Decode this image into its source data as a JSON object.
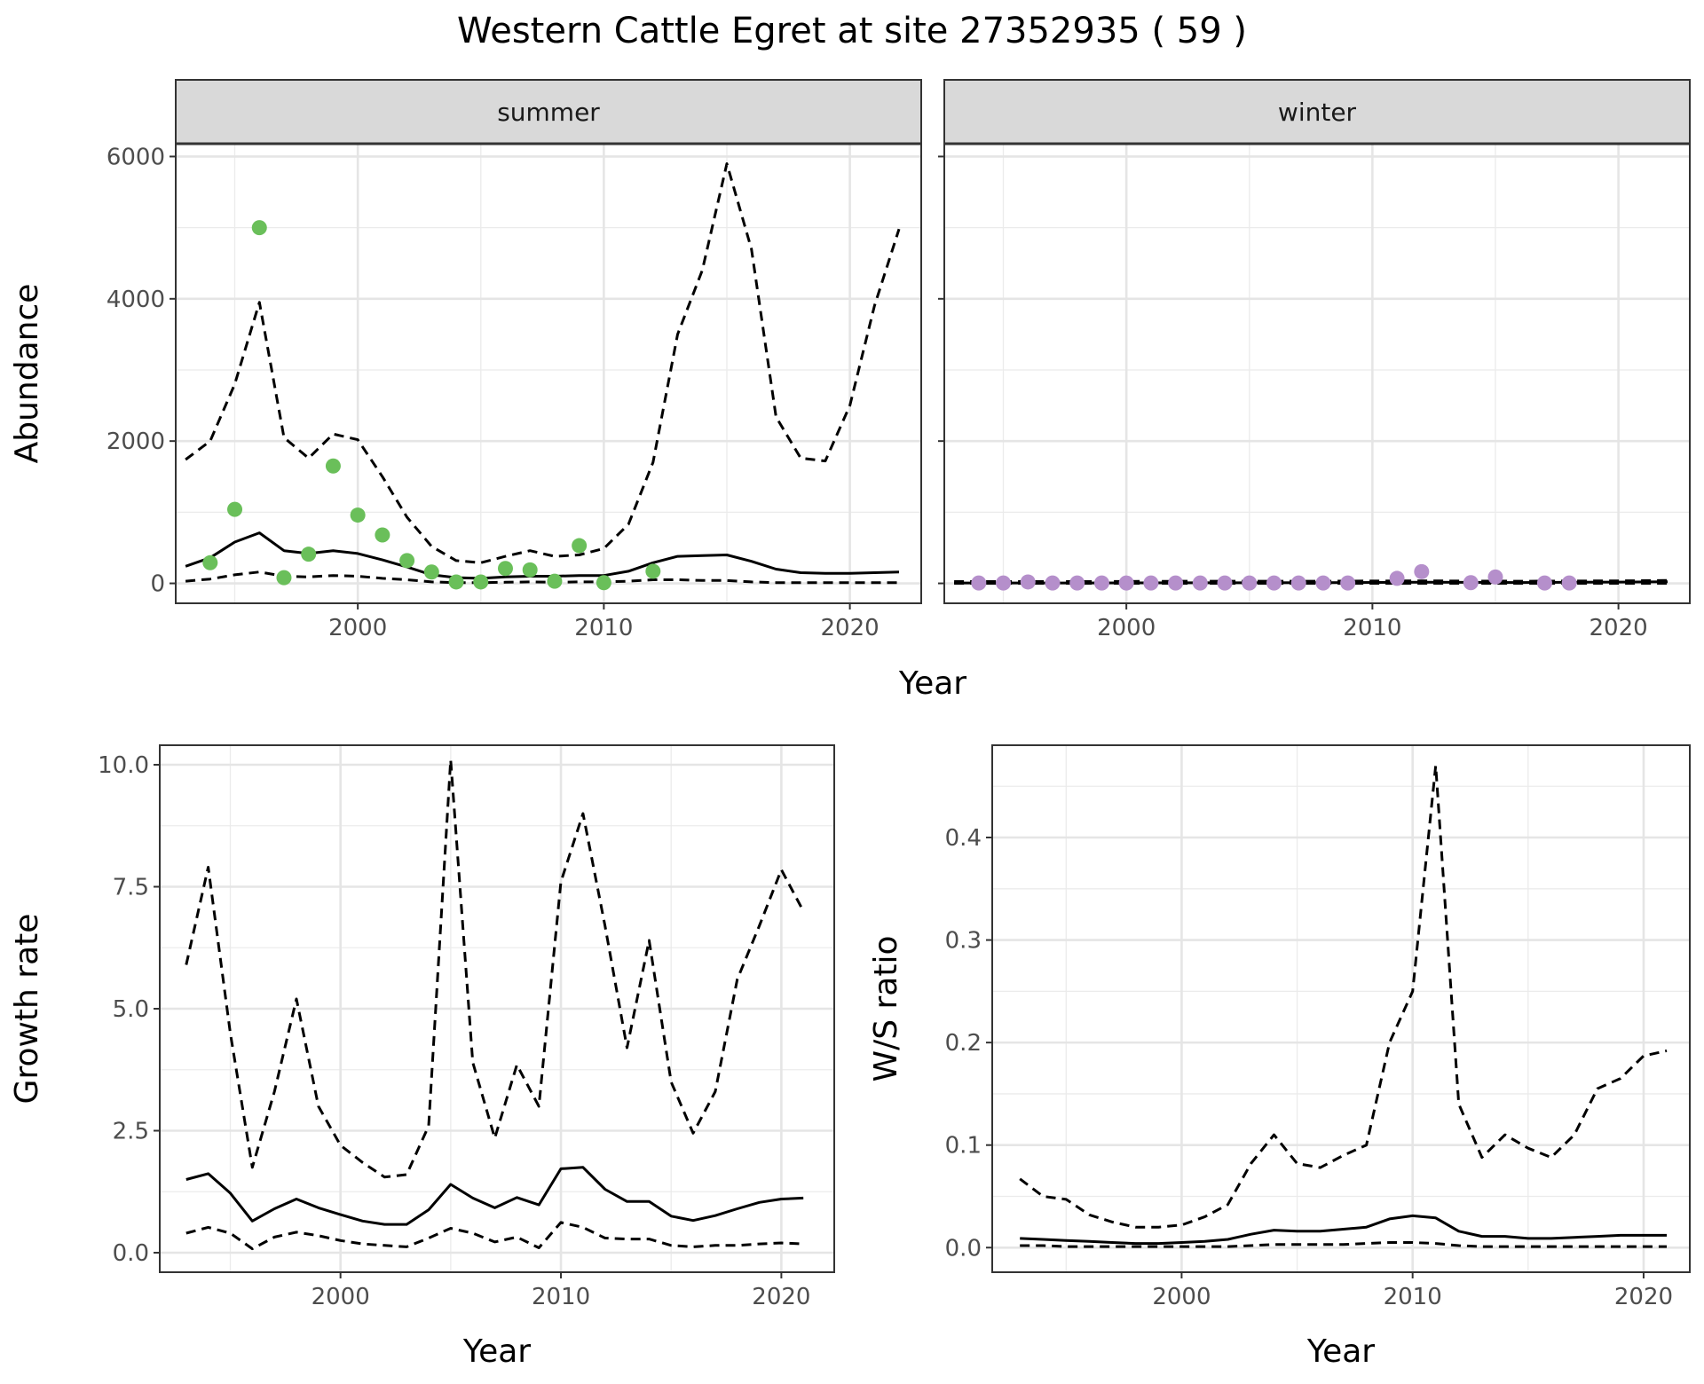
{
  "title": "Western Cattle Egret at site 27352935 ( 59 )",
  "chart_data": [
    {
      "type": "line",
      "panel": "summer",
      "xlabel": "Year",
      "ylabel": "Abundance",
      "xlim": [
        1992.6,
        2022.9
      ],
      "ylim": [
        -280,
        6180
      ],
      "xticks": [
        "2000",
        "2010",
        "2020"
      ],
      "yticks": [
        "0",
        "2000",
        "4000",
        "6000"
      ],
      "point_color": "#6abf5a",
      "points": {
        "x": [
          1994,
          1995,
          1996,
          1997,
          1998,
          1999,
          2000,
          2001,
          2002,
          2003,
          2004,
          2005,
          2006,
          2007,
          2008,
          2009,
          2010,
          2012
        ],
        "y": [
          290,
          1040,
          5000,
          80,
          410,
          1650,
          960,
          680,
          320,
          160,
          20,
          20,
          210,
          190,
          30,
          530,
          10,
          170
        ]
      },
      "series": [
        {
          "name": "",
          "style": "solid",
          "x": [
            1993,
            1994,
            1995,
            1996,
            1997,
            1998,
            1999,
            2000,
            2001,
            2002,
            2003,
            2004,
            2005,
            2006,
            2007,
            2008,
            2009,
            2010,
            2011,
            2012,
            2013,
            2014,
            2015,
            2016,
            2017,
            2018,
            2019,
            2020,
            2021,
            2022
          ],
          "y": [
            240,
            360,
            580,
            710,
            460,
            420,
            460,
            420,
            330,
            230,
            120,
            80,
            70,
            90,
            100,
            100,
            110,
            110,
            170,
            290,
            380,
            390,
            400,
            310,
            200,
            150,
            140,
            140,
            150,
            160
          ]
        },
        {
          "name": "",
          "style": "dashed",
          "x": [
            1993,
            1994,
            1995,
            1996,
            1997,
            1998,
            1999,
            2000,
            2001,
            2002,
            2003,
            2004,
            2005,
            2006,
            2007,
            2008,
            2009,
            2010,
            2011,
            2012,
            2013,
            2014,
            2015,
            2016,
            2017,
            2018,
            2019,
            2020,
            2021,
            2022
          ],
          "y": [
            1740,
            2000,
            2800,
            3950,
            2050,
            1760,
            2100,
            2020,
            1500,
            930,
            520,
            320,
            290,
            380,
            460,
            380,
            400,
            490,
            830,
            1700,
            3500,
            4400,
            5900,
            4700,
            2340,
            1760,
            1720,
            2500,
            3900,
            4980
          ]
        },
        {
          "name": "",
          "style": "dashed",
          "x": [
            1993,
            1994,
            1995,
            1996,
            1997,
            1998,
            1999,
            2000,
            2001,
            2002,
            2003,
            2004,
            2005,
            2006,
            2007,
            2008,
            2009,
            2010,
            2011,
            2012,
            2013,
            2014,
            2015,
            2016,
            2017,
            2018,
            2019,
            2020,
            2021,
            2022
          ],
          "y": [
            30,
            60,
            120,
            160,
            100,
            90,
            110,
            100,
            70,
            50,
            20,
            10,
            10,
            15,
            20,
            15,
            20,
            20,
            30,
            50,
            50,
            40,
            40,
            20,
            10,
            10,
            10,
            10,
            10,
            10
          ]
        }
      ]
    },
    {
      "type": "line",
      "panel": "winter",
      "xlabel": "Year",
      "ylabel": "Abundance",
      "xlim": [
        1992.6,
        2022.9
      ],
      "ylim": [
        -280,
        6180
      ],
      "xticks": [
        "2000",
        "2010",
        "2020"
      ],
      "yticks": [
        "0",
        "2000",
        "4000",
        "6000"
      ],
      "point_color": "#b58fcb",
      "points": {
        "x": [
          1994,
          1995,
          1996,
          1997,
          1998,
          1999,
          2000,
          2001,
          2002,
          2003,
          2004,
          2005,
          2006,
          2007,
          2008,
          2009,
          2011,
          2012,
          2014,
          2015,
          2017,
          2018
        ],
        "y": [
          5,
          5,
          20,
          5,
          5,
          5,
          5,
          5,
          5,
          5,
          5,
          5,
          5,
          5,
          5,
          5,
          70,
          165,
          10,
          90,
          5,
          5
        ]
      },
      "series": [
        {
          "name": "",
          "style": "solid",
          "x": [
            1993,
            1998,
            2003,
            2008,
            2012,
            2016,
            2020,
            2022
          ],
          "y": [
            5,
            5,
            8,
            10,
            15,
            12,
            18,
            22
          ]
        },
        {
          "name": "",
          "style": "dashed",
          "x": [
            1993,
            1998,
            2003,
            2008,
            2012,
            2016,
            2020,
            2022
          ],
          "y": [
            25,
            25,
            30,
            30,
            35,
            30,
            35,
            40
          ]
        },
        {
          "name": "",
          "style": "dashed",
          "x": [
            1993,
            2022
          ],
          "y": [
            0,
            0
          ]
        }
      ]
    },
    {
      "type": "line",
      "panel": "growth",
      "xlabel": "Year",
      "ylabel": "Growth rate",
      "xlim": [
        1991.8,
        2022.4
      ],
      "ylim": [
        -0.4,
        10.4
      ],
      "xticks": [
        "2000",
        "2010",
        "2020"
      ],
      "yticks": [
        "0.0",
        "2.5",
        "5.0",
        "7.5",
        "10.0"
      ],
      "series": [
        {
          "name": "",
          "style": "solid",
          "x": [
            1993,
            1994,
            1995,
            1996,
            1997,
            1998,
            1999,
            2000,
            2001,
            2002,
            2003,
            2004,
            2005,
            2006,
            2007,
            2008,
            2009,
            2010,
            2011,
            2012,
            2013,
            2014,
            2015,
            2016,
            2017,
            2018,
            2019,
            2020,
            2021
          ],
          "y": [
            1.5,
            1.62,
            1.22,
            0.65,
            0.9,
            1.1,
            0.92,
            0.78,
            0.65,
            0.58,
            0.58,
            0.88,
            1.4,
            1.12,
            0.92,
            1.13,
            0.98,
            1.72,
            1.75,
            1.3,
            1.05,
            1.05,
            0.75,
            0.66,
            0.76,
            0.9,
            1.03,
            1.1,
            1.12
          ]
        },
        {
          "name": "",
          "style": "dashed",
          "x": [
            1993,
            1994,
            1995,
            1996,
            1997,
            1998,
            1999,
            2000,
            2001,
            2002,
            2003,
            2004,
            2005,
            2006,
            2007,
            2008,
            2009,
            2010,
            2011,
            2012,
            2013,
            2014,
            2015,
            2016,
            2017,
            2018,
            2019,
            2020,
            2021
          ],
          "y": [
            5.9,
            7.9,
            4.5,
            1.75,
            3.3,
            5.2,
            3.0,
            2.2,
            1.85,
            1.55,
            1.6,
            2.6,
            10.1,
            3.9,
            2.35,
            3.85,
            3.0,
            7.6,
            9.0,
            6.7,
            4.2,
            6.4,
            3.5,
            2.45,
            3.3,
            5.6,
            6.7,
            7.85,
            7.0
          ]
        },
        {
          "name": "",
          "style": "dashed",
          "x": [
            1993,
            1994,
            1995,
            1996,
            1997,
            1998,
            1999,
            2000,
            2001,
            2002,
            2003,
            2004,
            2005,
            2006,
            2007,
            2008,
            2009,
            2010,
            2011,
            2012,
            2013,
            2014,
            2015,
            2016,
            2017,
            2018,
            2019,
            2020,
            2021
          ],
          "y": [
            0.4,
            0.52,
            0.4,
            0.08,
            0.32,
            0.42,
            0.35,
            0.25,
            0.18,
            0.15,
            0.12,
            0.3,
            0.5,
            0.4,
            0.22,
            0.32,
            0.1,
            0.62,
            0.52,
            0.3,
            0.28,
            0.28,
            0.15,
            0.12,
            0.15,
            0.15,
            0.18,
            0.2,
            0.18
          ]
        }
      ]
    },
    {
      "type": "line",
      "panel": "ws_ratio",
      "xlabel": "Year",
      "ylabel": "W/S ratio",
      "xlim": [
        1991.8,
        2022.0
      ],
      "ylim": [
        -0.024,
        0.49
      ],
      "xticks": [
        "2000",
        "2010",
        "2020"
      ],
      "yticks": [
        "0.0",
        "0.1",
        "0.2",
        "0.3",
        "0.4"
      ],
      "series": [
        {
          "name": "",
          "style": "solid",
          "x": [
            1993,
            1994,
            1995,
            1996,
            1997,
            1998,
            1999,
            2000,
            2001,
            2002,
            2003,
            2004,
            2005,
            2006,
            2007,
            2008,
            2009,
            2010,
            2011,
            2012,
            2013,
            2014,
            2015,
            2016,
            2017,
            2018,
            2019,
            2020,
            2021
          ],
          "y": [
            0.009,
            0.008,
            0.007,
            0.006,
            0.005,
            0.004,
            0.004,
            0.005,
            0.006,
            0.008,
            0.013,
            0.017,
            0.016,
            0.016,
            0.018,
            0.02,
            0.028,
            0.031,
            0.029,
            0.016,
            0.011,
            0.011,
            0.009,
            0.009,
            0.01,
            0.011,
            0.012,
            0.012,
            0.012
          ]
        },
        {
          "name": "",
          "style": "dashed",
          "x": [
            1993,
            1994,
            1995,
            1996,
            1997,
            1998,
            1999,
            2000,
            2001,
            2002,
            2003,
            2004,
            2005,
            2006,
            2007,
            2008,
            2009,
            2010,
            2011,
            2012,
            2013,
            2014,
            2015,
            2016,
            2017,
            2018,
            2019,
            2020,
            2021
          ],
          "y": [
            0.067,
            0.05,
            0.047,
            0.032,
            0.025,
            0.02,
            0.02,
            0.022,
            0.03,
            0.042,
            0.082,
            0.11,
            0.082,
            0.078,
            0.09,
            0.1,
            0.2,
            0.25,
            0.47,
            0.14,
            0.088,
            0.11,
            0.097,
            0.088,
            0.11,
            0.155,
            0.165,
            0.187,
            0.192
          ]
        },
        {
          "name": "",
          "style": "dashed",
          "x": [
            1993,
            1994,
            1995,
            1996,
            1997,
            1998,
            1999,
            2000,
            2001,
            2002,
            2003,
            2004,
            2005,
            2006,
            2007,
            2008,
            2009,
            2010,
            2011,
            2012,
            2013,
            2014,
            2015,
            2016,
            2017,
            2018,
            2019,
            2020,
            2021
          ],
          "y": [
            0.002,
            0.002,
            0.001,
            0.001,
            0.001,
            0.001,
            0.001,
            0.001,
            0.001,
            0.001,
            0.002,
            0.003,
            0.003,
            0.003,
            0.003,
            0.004,
            0.005,
            0.005,
            0.004,
            0.002,
            0.001,
            0.001,
            0.001,
            0.001,
            0.001,
            0.001,
            0.001,
            0.001,
            0.001
          ]
        }
      ]
    }
  ]
}
